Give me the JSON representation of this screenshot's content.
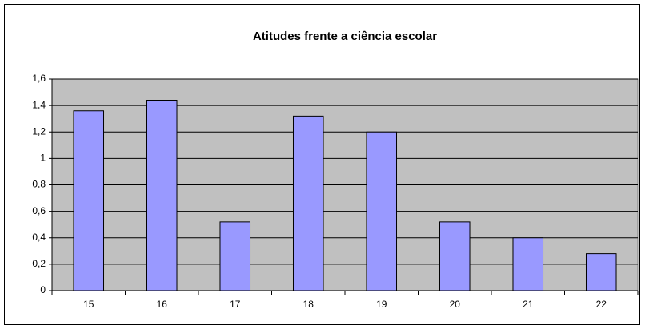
{
  "chart_data": {
    "type": "bar",
    "title": "Atitudes frente a ciência escolar",
    "categories": [
      "15",
      "16",
      "17",
      "18",
      "19",
      "20",
      "21",
      "22"
    ],
    "values": [
      1.36,
      1.44,
      0.52,
      1.32,
      1.2,
      0.52,
      0.4,
      0.28
    ],
    "color": "#9999ff",
    "ylim": [
      0,
      1.6
    ],
    "yticks": [
      0,
      {
        "value": 0.2,
        "label": "0,2"
      },
      {
        "value": 0.4,
        "label": "0,4"
      },
      {
        "value": 0.6,
        "label": "0,6"
      },
      {
        "value": 0.8,
        "label": "0,8"
      },
      1,
      {
        "value": 1.2,
        "label": "1,2"
      },
      {
        "value": 1.4,
        "label": "1,4"
      },
      {
        "value": 1.6,
        "label": "1,6"
      }
    ],
    "grid": true
  }
}
